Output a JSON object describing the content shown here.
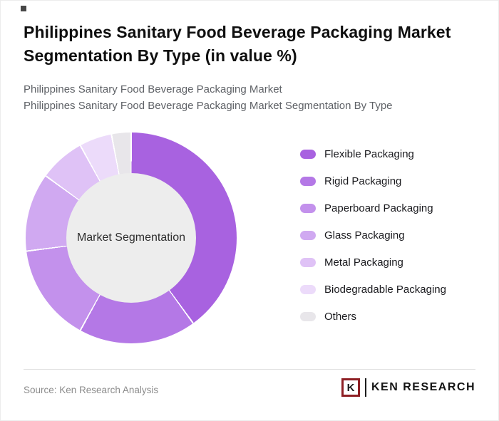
{
  "header": {
    "title": "Philippines Sanitary Food Beverage Packaging Market Segmentation By Type (in value %)",
    "subtitle_line1": "Philippines Sanitary Food Beverage Packaging Market",
    "subtitle_line2": "Philippines Sanitary Food Beverage Packaging Market Segmentation By Type"
  },
  "chart_data": {
    "type": "pie",
    "donut": true,
    "center_label": "Market Segmentation",
    "legend_position": "right",
    "unit": "%",
    "categories": [
      "Flexible Packaging",
      "Rigid Packaging",
      "Paperboard Packaging",
      "Glass Packaging",
      "Metal Packaging",
      "Biodegradable Packaging",
      "Others"
    ],
    "values": [
      40,
      18,
      15,
      12,
      7,
      5,
      3
    ],
    "colors": [
      "#a862e0",
      "#b478e6",
      "#c391ec",
      "#d0a9f1",
      "#dfc2f6",
      "#ecdbfa",
      "#e8e6ea"
    ],
    "hole_color": "#ededed",
    "note": "values estimated from arc angles; no numeric labels shown in image"
  },
  "footer": {
    "source": "Source: Ken Research Analysis",
    "logo_letter": "K",
    "logo_text": "KEN RESEARCH"
  }
}
